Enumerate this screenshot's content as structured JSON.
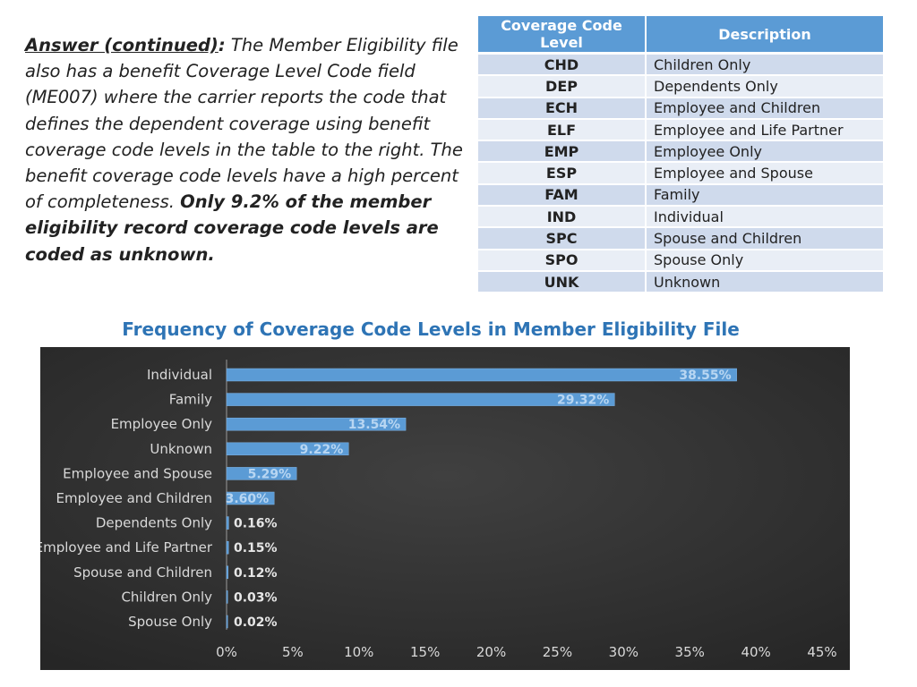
{
  "paragraph": {
    "lead": "Answer (continued)",
    "colon": ":",
    "body": " The Member Eligibility file also has a benefit Coverage Level Code field (ME007) where the carrier reports  the code that defines the dependent coverage using benefit coverage code levels in the table to the right. The benefit coverage code levels have a high percent of  completeness. ",
    "emphasis": "Only 9.2% of the member eligibility record coverage code levels are coded as unknown."
  },
  "code_table": {
    "headers": [
      "Coverage Code Level",
      "Description"
    ],
    "rows": [
      {
        "code": "CHD",
        "description": "Children Only"
      },
      {
        "code": "DEP",
        "description": "Dependents Only"
      },
      {
        "code": "ECH",
        "description": "Employee and Children"
      },
      {
        "code": "ELF",
        "description": "Employee and Life Partner"
      },
      {
        "code": "EMP",
        "description": "Employee Only"
      },
      {
        "code": "ESP",
        "description": "Employee and Spouse"
      },
      {
        "code": "FAM",
        "description": "Family"
      },
      {
        "code": "IND",
        "description": "Individual"
      },
      {
        "code": "SPC",
        "description": "Spouse and Children"
      },
      {
        "code": "SPO",
        "description": "Spouse Only"
      },
      {
        "code": "UNK",
        "description": "Unknown"
      }
    ]
  },
  "colors": {
    "header_blue": "#5b9bd5",
    "row_odd": "#cfdaec",
    "row_even": "#e9eef6",
    "bar_blue": "#5b9bd5",
    "chart_bg": "#333333",
    "title_blue": "#2e74b5"
  },
  "chart_data": {
    "type": "bar",
    "orientation": "horizontal",
    "title": "Frequency of Coverage Code Levels in Member Eligibility File",
    "categories": [
      "Individual",
      "Family",
      "Employee Only",
      "Unknown",
      "Employee and Spouse",
      "Employee and Children",
      "Dependents Only",
      "Employee and Life Partner",
      "Spouse and Children",
      "Children Only",
      "Spouse Only"
    ],
    "values": [
      38.55,
      29.32,
      13.54,
      9.22,
      5.29,
      3.6,
      0.16,
      0.15,
      0.12,
      0.03,
      0.02
    ],
    "data_labels": [
      "38.55%",
      "29.32%",
      "13.54%",
      "9.22%",
      "5.29%",
      "3.60%",
      "0.16%",
      "0.15%",
      "0.12%",
      "0.03%",
      "0.02%"
    ],
    "xlim": [
      0,
      45
    ],
    "x_ticks": [
      0,
      5,
      10,
      15,
      20,
      25,
      30,
      35,
      40,
      45
    ],
    "x_tick_labels": [
      "0%",
      "5%",
      "10%",
      "15%",
      "20%",
      "25%",
      "30%",
      "35%",
      "40%",
      "45%"
    ],
    "xlabel": "",
    "ylabel": "",
    "grid": false
  }
}
